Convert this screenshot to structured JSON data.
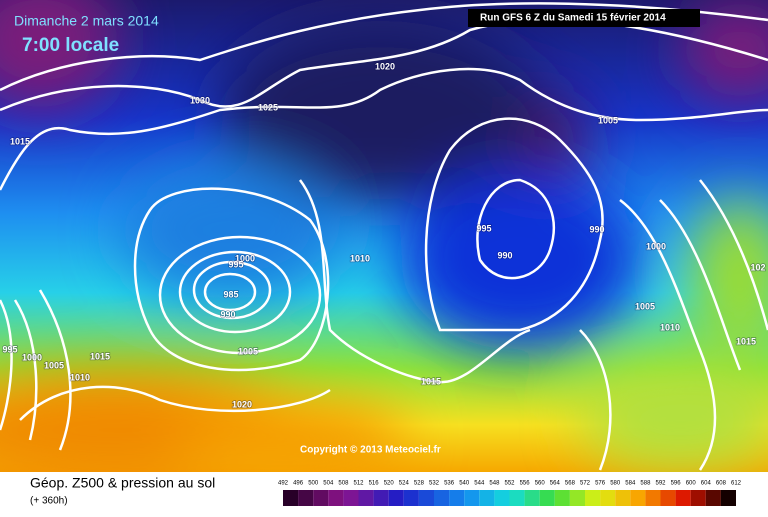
{
  "header": {
    "date": "Dimanche 2 mars 2014",
    "time": "7:00 locale",
    "run": "Run GFS 6 Z du Samedi 15 février 2014"
  },
  "isobar_labels": [
    "1030",
    "1025",
    "1020",
    "1015",
    "1005",
    "995",
    "990",
    "1000",
    "990",
    "1010",
    "1000",
    "995",
    "985",
    "990",
    "1005",
    "1015",
    "1010",
    "1005",
    "1015",
    "995",
    "1000",
    "1005",
    "1010",
    "1015",
    "1020",
    "102"
  ],
  "copyright": "Copyright © 2013 Meteociel.fr",
  "footer": {
    "title": "Géop. Z500 & pression au sol",
    "range": "(+ 360h)"
  },
  "scale": [
    "492",
    "496",
    "500",
    "504",
    "508",
    "512",
    "516",
    "520",
    "524",
    "528",
    "532",
    "536",
    "540",
    "544",
    "548",
    "552",
    "556",
    "560",
    "564",
    "568",
    "572",
    "576",
    "580",
    "584",
    "588",
    "592",
    "596",
    "600",
    "604",
    "608",
    "612"
  ]
}
